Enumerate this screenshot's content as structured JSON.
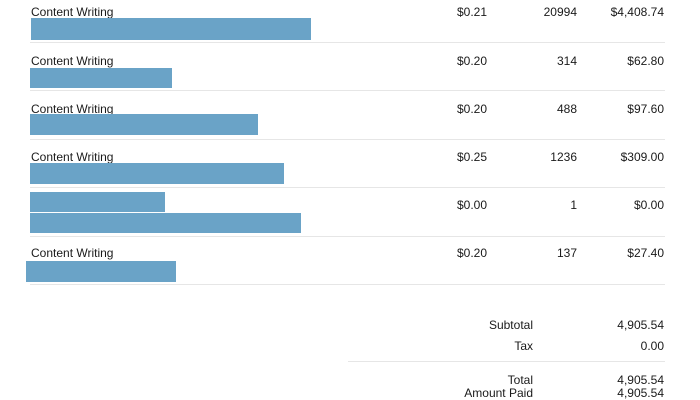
{
  "line_items": [
    {
      "description": "Content Writing",
      "rate": "$0.21",
      "quantity": "20994",
      "amount": "$4,408.74"
    },
    {
      "description": "Content Writing",
      "rate": "$0.20",
      "quantity": "314",
      "amount": "$62.80"
    },
    {
      "description": "Content Writing",
      "rate": "$0.20",
      "quantity": "488",
      "amount": "$97.60"
    },
    {
      "description": "Content Writing",
      "rate": "$0.25",
      "quantity": "1236",
      "amount": "$309.00"
    },
    {
      "description": "",
      "rate": "$0.00",
      "quantity": "1",
      "amount": "$0.00"
    },
    {
      "description": "Content Writing",
      "rate": "$0.20",
      "quantity": "137",
      "amount": "$27.40"
    }
  ],
  "totals": {
    "subtotal_label": "Subtotal",
    "subtotal_value": "4,905.54",
    "tax_label": "Tax",
    "tax_value": "0.00",
    "total_label": "Total",
    "total_value": "4,905.54",
    "amount_paid_label": "Amount Paid",
    "amount_paid_value": "4,905.54"
  },
  "colors": {
    "redaction": "#6aa3c7",
    "divider": "#e6e6e6"
  }
}
